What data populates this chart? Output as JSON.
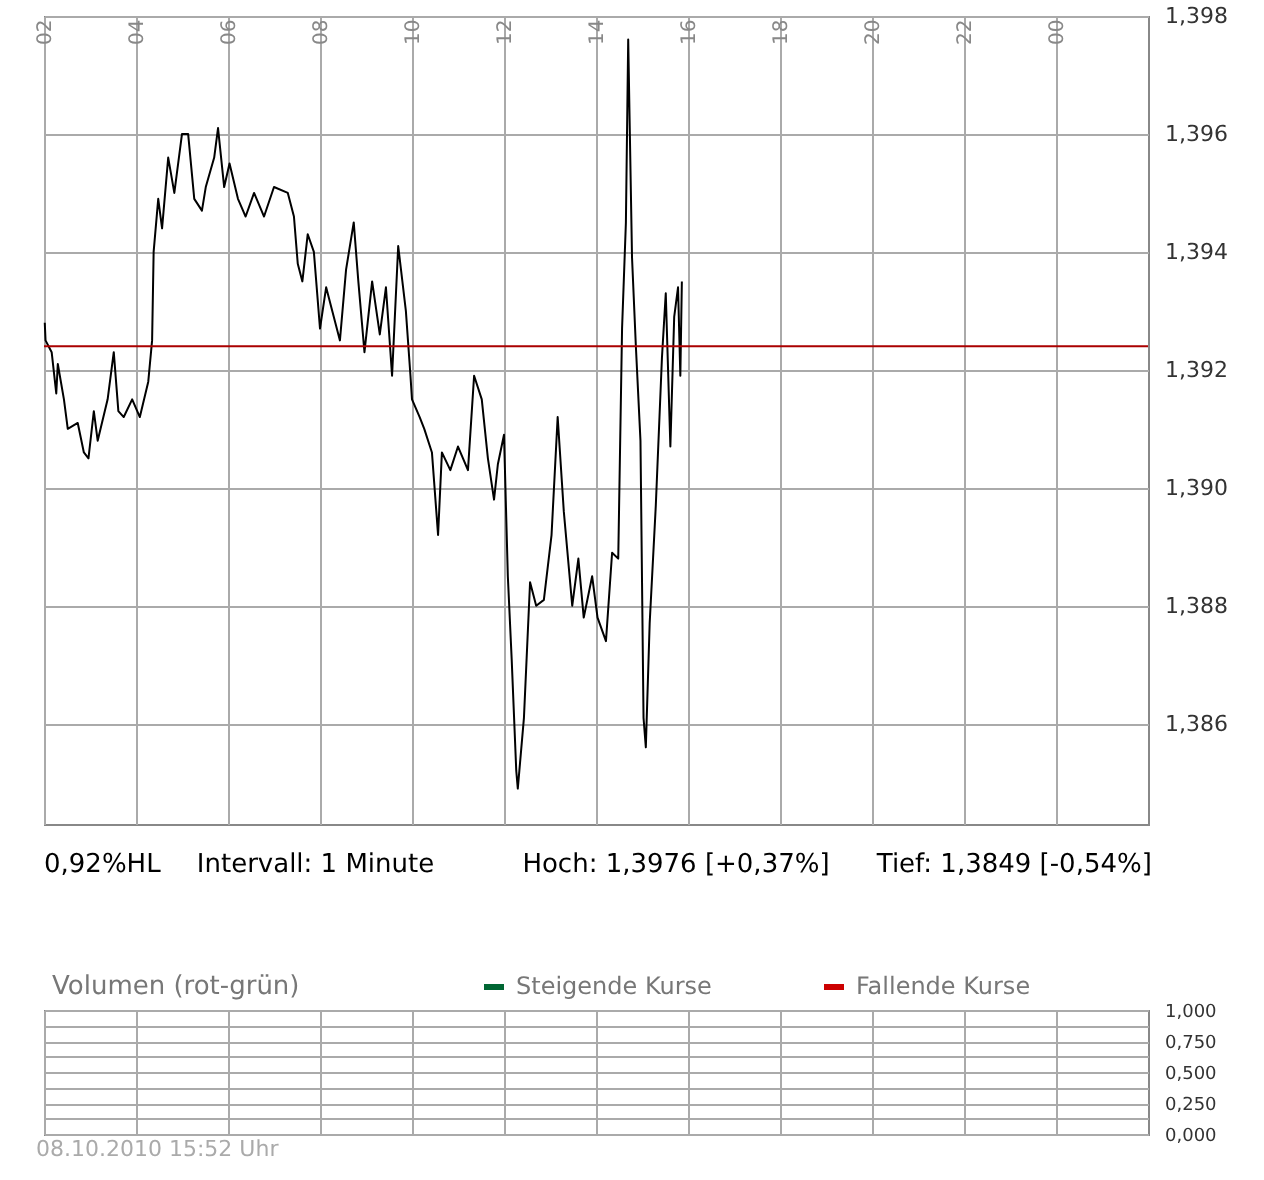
{
  "chart_data": [
    {
      "type": "line",
      "x": [
        "2010-10-08T02:01",
        "2010-10-08T02:02",
        "2010-10-08T02:10",
        "2010-10-08T02:16",
        "2010-10-08T02:18",
        "2010-10-08T02:26",
        "2010-10-08T02:31",
        "2010-10-08T02:44",
        "2010-10-08T02:52",
        "2010-10-08T02:58",
        "2010-10-08T03:05",
        "2010-10-08T03:10",
        "2010-10-08T03:23",
        "2010-10-08T03:31",
        "2010-10-08T03:37",
        "2010-10-08T03:44",
        "2010-10-08T03:55",
        "2010-10-08T04:05",
        "2010-10-08T04:16",
        "2010-10-08T04:21",
        "2010-10-08T04:23",
        "2010-10-08T04:29",
        "2010-10-08T04:34",
        "2010-10-08T04:42",
        "2010-10-08T04:50",
        "2010-10-08T05:00",
        "2010-10-08T05:08",
        "2010-10-08T05:16",
        "2010-10-08T05:26",
        "2010-10-08T05:31",
        "2010-10-08T05:42",
        "2010-10-08T05:47",
        "2010-10-08T05:55",
        "2010-10-08T06:02",
        "2010-10-08T06:13",
        "2010-10-08T06:23",
        "2010-10-08T06:34",
        "2010-10-08T06:47",
        "2010-10-08T07:00",
        "2010-10-08T07:18",
        "2010-10-08T07:26",
        "2010-10-08T07:31",
        "2010-10-08T07:37",
        "2010-10-08T07:44",
        "2010-10-08T07:52",
        "2010-10-08T08:00",
        "2010-10-08T08:08",
        "2010-10-08T08:16",
        "2010-10-08T08:26",
        "2010-10-08T08:34",
        "2010-10-08T08:44",
        "2010-10-08T08:50",
        "2010-10-08T08:58",
        "2010-10-08T09:08",
        "2010-10-08T09:18",
        "2010-10-08T09:26",
        "2010-10-08T09:34",
        "2010-10-08T09:42",
        "2010-10-08T09:52",
        "2010-10-08T09:58",
        "2010-10-08T10:00",
        "2010-10-08T10:10",
        "2010-10-08T10:16",
        "2010-10-08T10:26",
        "2010-10-08T10:34",
        "2010-10-08T10:39",
        "2010-10-08T10:50",
        "2010-10-08T11:00",
        "2010-10-08T11:13",
        "2010-10-08T11:21",
        "2010-10-08T11:31",
        "2010-10-08T11:39",
        "2010-10-08T11:47",
        "2010-10-08T11:52",
        "2010-10-08T12:00",
        "2010-10-08T12:05",
        "2010-10-08T12:10",
        "2010-10-08T12:16",
        "2010-10-08T12:18",
        "2010-10-08T12:26",
        "2010-10-08T12:34",
        "2010-10-08T12:42",
        "2010-10-08T12:52",
        "2010-10-08T13:02",
        "2010-10-08T13:10",
        "2010-10-08T13:18",
        "2010-10-08T13:29",
        "2010-10-08T13:37",
        "2010-10-08T13:44",
        "2010-10-08T13:55",
        "2010-10-08T14:02",
        "2010-10-08T14:13",
        "2010-10-08T14:21",
        "2010-10-08T14:29",
        "2010-10-08T14:34",
        "2010-10-08T14:39",
        "2010-10-08T14:42",
        "2010-10-08T14:47",
        "2010-10-08T14:52",
        "2010-10-08T14:58",
        "2010-10-08T15:02",
        "2010-10-08T15:05",
        "2010-10-08T15:10",
        "2010-10-08T15:18",
        "2010-10-08T15:26",
        "2010-10-08T15:31",
        "2010-10-08T15:37",
        "2010-10-08T15:42",
        "2010-10-08T15:47",
        "2010-10-08T15:50",
        "2010-10-08T15:52"
      ],
      "series": [
        {
          "color": "#000000",
          "values": [
            1.3928,
            1.3925,
            1.3923,
            1.3916,
            1.3921,
            1.3915,
            1.391,
            1.3911,
            1.3906,
            1.3905,
            1.3913,
            1.3908,
            1.3915,
            1.3923,
            1.3913,
            1.3912,
            1.3915,
            1.3912,
            1.3918,
            1.3925,
            1.394,
            1.3949,
            1.3944,
            1.3956,
            1.395,
            1.396,
            1.396,
            1.3949,
            1.3947,
            1.3951,
            1.3956,
            1.3961,
            1.3951,
            1.3955,
            1.3949,
            1.3946,
            1.395,
            1.3946,
            1.3951,
            1.395,
            1.3946,
            1.3938,
            1.3935,
            1.3943,
            1.394,
            1.3927,
            1.3934,
            1.393,
            1.3925,
            1.3937,
            1.3945,
            1.3935,
            1.3923,
            1.3935,
            1.3926,
            1.3934,
            1.3919,
            1.3941,
            1.393,
            1.3919,
            1.3915,
            1.3912,
            1.391,
            1.3906,
            1.3892,
            1.3906,
            1.3903,
            1.3907,
            1.3903,
            1.3919,
            1.3915,
            1.3905,
            1.3898,
            1.3904,
            1.3909,
            1.3885,
            1.3871,
            1.3852,
            1.3849,
            1.3861,
            1.3884,
            1.388,
            1.3881,
            1.3892,
            1.3912,
            1.3896,
            1.388,
            1.3888,
            1.3878,
            1.3885,
            1.3878,
            1.3874,
            1.3889,
            1.3888,
            1.3927,
            1.3945,
            1.3976,
            1.3939,
            1.3924,
            1.3908,
            1.3861,
            1.3856,
            1.3877,
            1.3897,
            1.3922,
            1.3933,
            1.3907,
            1.3929,
            1.3934,
            1.3919,
            1.3935
          ]
        }
      ],
      "xlim": [
        "2010-10-08T02:00",
        "2010-10-09T02:00"
      ],
      "xticks": [
        {
          "value": "2010-10-08T02:00",
          "label": "02"
        },
        {
          "value": "2010-10-08T04:00",
          "label": "04"
        },
        {
          "value": "2010-10-08T06:00",
          "label": "06"
        },
        {
          "value": "2010-10-08T08:00",
          "label": "08"
        },
        {
          "value": "2010-10-08T10:00",
          "label": "10"
        },
        {
          "value": "2010-10-08T12:00",
          "label": "12"
        },
        {
          "value": "2010-10-08T14:00",
          "label": "14"
        },
        {
          "value": "2010-10-08T16:00",
          "label": "16"
        },
        {
          "value": "2010-10-08T18:00",
          "label": "18"
        },
        {
          "value": "2010-10-08T20:00",
          "label": "20"
        },
        {
          "value": "2010-10-08T22:00",
          "label": "22"
        },
        {
          "value": "2010-10-09T00:00",
          "label": "00"
        }
      ],
      "ylim": [
        1.3843,
        1.398
      ],
      "yticks": [
        {
          "value": 1.386,
          "label": "1,386"
        },
        {
          "value": 1.388,
          "label": "1,388"
        },
        {
          "value": 1.39,
          "label": "1,390"
        },
        {
          "value": 1.392,
          "label": "1,392"
        },
        {
          "value": 1.394,
          "label": "1,394"
        },
        {
          "value": 1.396,
          "label": "1,396"
        },
        {
          "value": 1.398,
          "label": "1,398"
        }
      ],
      "ref_lines": [
        {
          "axis": "y",
          "value": 1.3924,
          "color": "#aa0000"
        }
      ],
      "grid": true,
      "legend": false,
      "marker": "none",
      "line_style": "solid",
      "annotations": [
        "0,92%HL",
        "Intervall: 1 Minute",
        "Hoch: 1,3976 [+0,37%]",
        "Tief: 1,3849 [-0,54%]"
      ]
    },
    {
      "type": "bar",
      "title": "Volumen (rot-grün)",
      "series": [
        {
          "name": "Steigende Kurse",
          "color": "#006633",
          "values": [
            null,
            null,
            null,
            null,
            null,
            null,
            null,
            null,
            null,
            null,
            null,
            null
          ]
        },
        {
          "name": "Fallende Kurse",
          "color": "#cc0000",
          "values": [
            null,
            null,
            null,
            null,
            null,
            null,
            null,
            null,
            null,
            null,
            null,
            null
          ]
        }
      ],
      "categories": [
        null,
        null,
        null,
        null,
        null,
        null,
        null,
        null,
        null,
        null,
        null,
        null
      ],
      "ylim": [
        0,
        1
      ],
      "yticks": [
        {
          "value": 0,
          "label": "0,000"
        },
        {
          "value": 0.125,
          "label": null
        },
        {
          "value": 0.25,
          "label": "0,250"
        },
        {
          "value": 0.375,
          "label": null
        },
        {
          "value": 0.5,
          "label": "0,500"
        },
        {
          "value": 0.625,
          "label": null
        },
        {
          "value": 0.75,
          "label": "0,750"
        },
        {
          "value": 0.875,
          "label": null
        },
        {
          "value": 1,
          "label": "1,000"
        }
      ],
      "tick_labels": "y",
      "grid": true,
      "legend": "top right",
      "annotations": [
        "08.10.2010 15:52 Uhr"
      ]
    }
  ]
}
